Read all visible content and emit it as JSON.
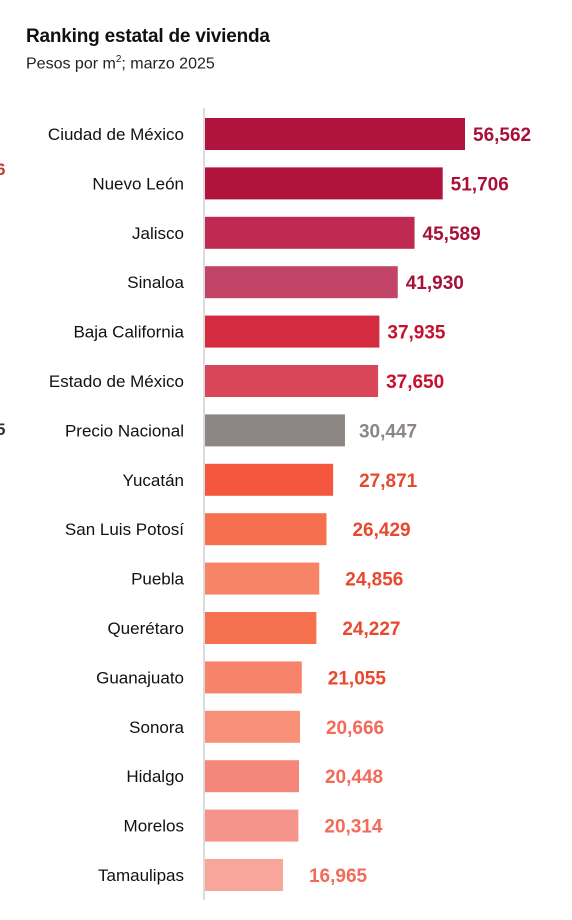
{
  "header": {
    "title": "Ranking estatal de vivienda",
    "subtitle_prefix": "Pesos por m",
    "subtitle_sup": "2",
    "subtitle_suffix": "; marzo 2025"
  },
  "edge_marks": [
    "6",
    "5"
  ],
  "chart_data": {
    "type": "bar",
    "orientation": "horizontal",
    "title": "Ranking estatal de vivienda",
    "subtitle": "Pesos por m²; marzo 2025",
    "xlabel": "",
    "ylabel": "",
    "xlim": [
      0,
      62000
    ],
    "grid": false,
    "categories": [
      "Ciudad de México",
      "Nuevo León",
      "Jalisco",
      "Sinaloa",
      "Baja California",
      "Estado de México",
      "Precio Nacional",
      "Yucatán",
      "San Luis Potosí",
      "Puebla",
      "Querétaro",
      "Guanajuato",
      "Sonora",
      "Hidalgo",
      "Morelos",
      "Tamaulipas"
    ],
    "values": [
      56562,
      51706,
      45589,
      41930,
      37935,
      37650,
      30447,
      27871,
      26429,
      24856,
      24227,
      21055,
      20666,
      20448,
      20314,
      16965
    ],
    "value_labels": [
      "56,562",
      "51,706",
      "45,589",
      "41,930",
      "37,935",
      "37,650",
      "30,447",
      "27,871",
      "26,429",
      "24,856",
      "24,227",
      "21,055",
      "20,666",
      "20,448",
      "20,314",
      "16,965"
    ],
    "bar_colors": [
      "#b0133c",
      "#b0133c",
      "#bf2a52",
      "#c24466",
      "#d42b40",
      "#d9465a",
      "#8e8685",
      "#f4573d",
      "#f6704f",
      "#f88467",
      "#f6714f",
      "#f8836b",
      "#f99179",
      "#f5867a",
      "#f5948a",
      "#f8a69a"
    ],
    "label_colors": [
      "#a8103a",
      "#a8103a",
      "#a8103a",
      "#a8103a",
      "#c8102e",
      "#c8102e",
      "#8e8685",
      "#e8492e",
      "#e8492e",
      "#e8492e",
      "#e8492e",
      "#e8492e",
      "#f26a5a",
      "#f26a5a",
      "#f26a5a",
      "#f26a5a"
    ],
    "label_offsets": [
      0,
      0,
      0,
      0,
      0,
      0,
      0,
      0,
      0,
      0,
      0,
      0,
      0,
      0,
      0,
      0
    ]
  }
}
